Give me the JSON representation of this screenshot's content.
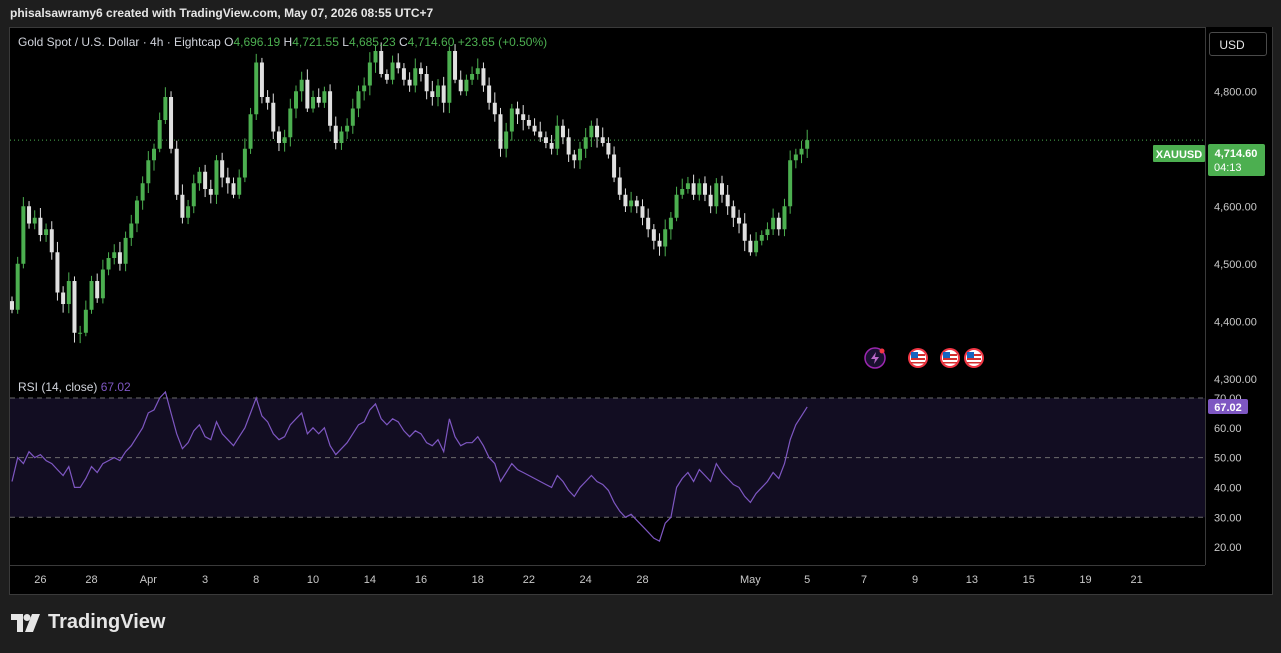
{
  "header": {
    "attribution": "phisalsawramy6 created with TradingView.com, May 07, 2026 08:55 UTC+7"
  },
  "legend": {
    "symbol": "Gold Spot / U.S. Dollar · 4h · Eightcap",
    "o_label": "O",
    "o": "4,696.19",
    "h_label": "H",
    "h": "4,721.55",
    "l_label": "L",
    "l": "4,685.23",
    "c_label": "C",
    "c": "4,714.60",
    "change": "+23.65 (+0.50%)"
  },
  "currency_button": "USD",
  "last_price": {
    "symbol": "XAUUSD",
    "price": "4,714.60",
    "countdown": "04:13"
  },
  "rsi": {
    "label": "RSI (14, close)",
    "value": "67.02"
  },
  "brand": {
    "name": "TradingView"
  },
  "colors": {
    "up": "#4caf50",
    "down": "#e0e0e0",
    "rsi_line": "#7e57c2",
    "rsi_band": "#120d22",
    "badge_green": "#4caf50",
    "badge_purple": "#7e57c2"
  },
  "event_icons": [
    "lightning-icon",
    "us-flag-icon",
    "us-flag-icon",
    "us-flag-icon"
  ],
  "chart_data": [
    {
      "type": "candlestick",
      "title": "Gold Spot / U.S. Dollar · 4h · Eightcap",
      "ylim": [
        4277,
        4910
      ],
      "yticks": [
        {
          "v": 4300,
          "label": "4,300.00"
        },
        {
          "v": 4400,
          "label": "4,400.00"
        },
        {
          "v": 4500,
          "label": "4,500.00"
        },
        {
          "v": 4600,
          "label": "4,600.00"
        },
        {
          "v": 4700,
          "label": "4,700.00"
        },
        {
          "v": 4800,
          "label": "4,800.00"
        }
      ],
      "xticks": [
        {
          "i": 5,
          "label": "26"
        },
        {
          "i": 14,
          "label": "28"
        },
        {
          "i": 24,
          "label": "Apr"
        },
        {
          "i": 34,
          "label": "3"
        },
        {
          "i": 43,
          "label": "8"
        },
        {
          "i": 53,
          "label": "10"
        },
        {
          "i": 63,
          "label": "14"
        },
        {
          "i": 72,
          "label": "16"
        },
        {
          "i": 82,
          "label": "18"
        },
        {
          "i": 91,
          "label": "22"
        },
        {
          "i": 101,
          "label": "24"
        },
        {
          "i": 111,
          "label": "28"
        },
        {
          "i": 130,
          "label": "May"
        },
        {
          "i": 140,
          "label": "5"
        },
        {
          "i": 150,
          "label": "7"
        },
        {
          "i": 159,
          "label": "9"
        },
        {
          "i": 169,
          "label": "13"
        },
        {
          "i": 179,
          "label": "15"
        },
        {
          "i": 189,
          "label": "19"
        },
        {
          "i": 198,
          "label": "21"
        }
      ],
      "closes": [
        4420,
        4500,
        4600,
        4570,
        4580,
        4550,
        4560,
        4520,
        4450,
        4430,
        4470,
        4380,
        4380,
        4420,
        4470,
        4440,
        4490,
        4510,
        4520,
        4500,
        4545,
        4570,
        4610,
        4640,
        4680,
        4700,
        4750,
        4790,
        4700,
        4620,
        4580,
        4600,
        4640,
        4660,
        4630,
        4620,
        4680,
        4650,
        4640,
        4620,
        4650,
        4700,
        4760,
        4850,
        4790,
        4780,
        4730,
        4710,
        4720,
        4770,
        4800,
        4820,
        4770,
        4790,
        4780,
        4800,
        4740,
        4710,
        4730,
        4740,
        4770,
        4800,
        4810,
        4850,
        4870,
        4830,
        4820,
        4850,
        4840,
        4820,
        4810,
        4840,
        4830,
        4800,
        4790,
        4810,
        4780,
        4870,
        4820,
        4800,
        4820,
        4830,
        4840,
        4810,
        4780,
        4760,
        4700,
        4730,
        4770,
        4760,
        4750,
        4740,
        4730,
        4720,
        4710,
        4700,
        4740,
        4720,
        4690,
        4680,
        4700,
        4720,
        4740,
        4720,
        4710,
        4690,
        4650,
        4620,
        4600,
        4610,
        4600,
        4580,
        4560,
        4540,
        4530,
        4560,
        4580,
        4620,
        4630,
        4640,
        4620,
        4640,
        4620,
        4600,
        4640,
        4620,
        4600,
        4580,
        4570,
        4540,
        4520,
        4540,
        4550,
        4560,
        4580,
        4560,
        4600,
        4680,
        4690,
        4700,
        4715
      ]
    },
    {
      "type": "line",
      "title": "RSI (14, close)",
      "ylim": [
        14,
        72
      ],
      "yticks": [
        {
          "v": 20,
          "label": "20.00"
        },
        {
          "v": 30,
          "label": "30.00"
        },
        {
          "v": 40,
          "label": "40.00"
        },
        {
          "v": 50,
          "label": "50.00"
        },
        {
          "v": 60,
          "label": "60.00"
        },
        {
          "v": 70,
          "label": "70.00"
        }
      ],
      "bands": [
        30,
        50,
        70
      ],
      "values": [
        42,
        50,
        48,
        52,
        50,
        51,
        49,
        48,
        46,
        44,
        47,
        40,
        40,
        43,
        47,
        45,
        48,
        49,
        50,
        49,
        52,
        54,
        57,
        60,
        65,
        66,
        70,
        72,
        65,
        58,
        53,
        55,
        59,
        61,
        57,
        56,
        62,
        58,
        56,
        54,
        57,
        60,
        65,
        70,
        64,
        62,
        58,
        56,
        57,
        61,
        63,
        65,
        58,
        60,
        58,
        60,
        54,
        51,
        53,
        55,
        58,
        61,
        62,
        66,
        68,
        63,
        61,
        63,
        62,
        59,
        57,
        59,
        58,
        55,
        54,
        56,
        52,
        63,
        57,
        54,
        55,
        55,
        57,
        54,
        50,
        48,
        42,
        45,
        48,
        46,
        45,
        44,
        43,
        42,
        41,
        40,
        44,
        42,
        39,
        37,
        40,
        42,
        44,
        42,
        41,
        39,
        35,
        32,
        30,
        31,
        29,
        27,
        25,
        23,
        22,
        28,
        30,
        40,
        43,
        45,
        42,
        46,
        44,
        42,
        48,
        45,
        43,
        41,
        40,
        37,
        35,
        38,
        40,
        42,
        45,
        43,
        48,
        56,
        61,
        64,
        67
      ]
    }
  ]
}
